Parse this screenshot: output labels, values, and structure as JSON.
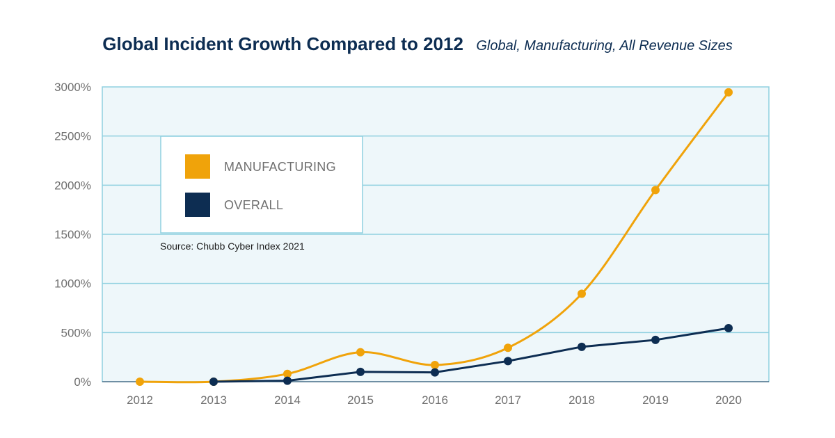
{
  "chart_data": {
    "type": "line",
    "title": "Global Incident Growth Compared to 2012",
    "subtitle": "Global, Manufacturing, All Revenue Sizes",
    "x": [
      "2012",
      "2013",
      "2014",
      "2015",
      "2016",
      "2017",
      "2018",
      "2019",
      "2020"
    ],
    "series": [
      {
        "name": "MANUFACTURING",
        "color": "#f0a30a",
        "values": [
          0,
          0,
          80,
          300,
          170,
          345,
          895,
          1950,
          2945
        ]
      },
      {
        "name": "OVERALL",
        "color": "#0d2d52",
        "values": [
          null,
          0,
          10,
          100,
          95,
          210,
          355,
          425,
          545
        ]
      }
    ],
    "ylim": [
      0,
      3000
    ],
    "yticks": [
      "0%",
      "500%",
      "1000%",
      "1500%",
      "2000%",
      "2500%",
      "3000%"
    ],
    "ytick_values": [
      0,
      500,
      1000,
      1500,
      2000,
      2500,
      3000
    ],
    "grid": true,
    "legend_position": "top-left",
    "source": "Source: Chubb Cyber Index 2021",
    "plot_background": "#eef7fa",
    "grid_color": "#8fd0e0"
  }
}
